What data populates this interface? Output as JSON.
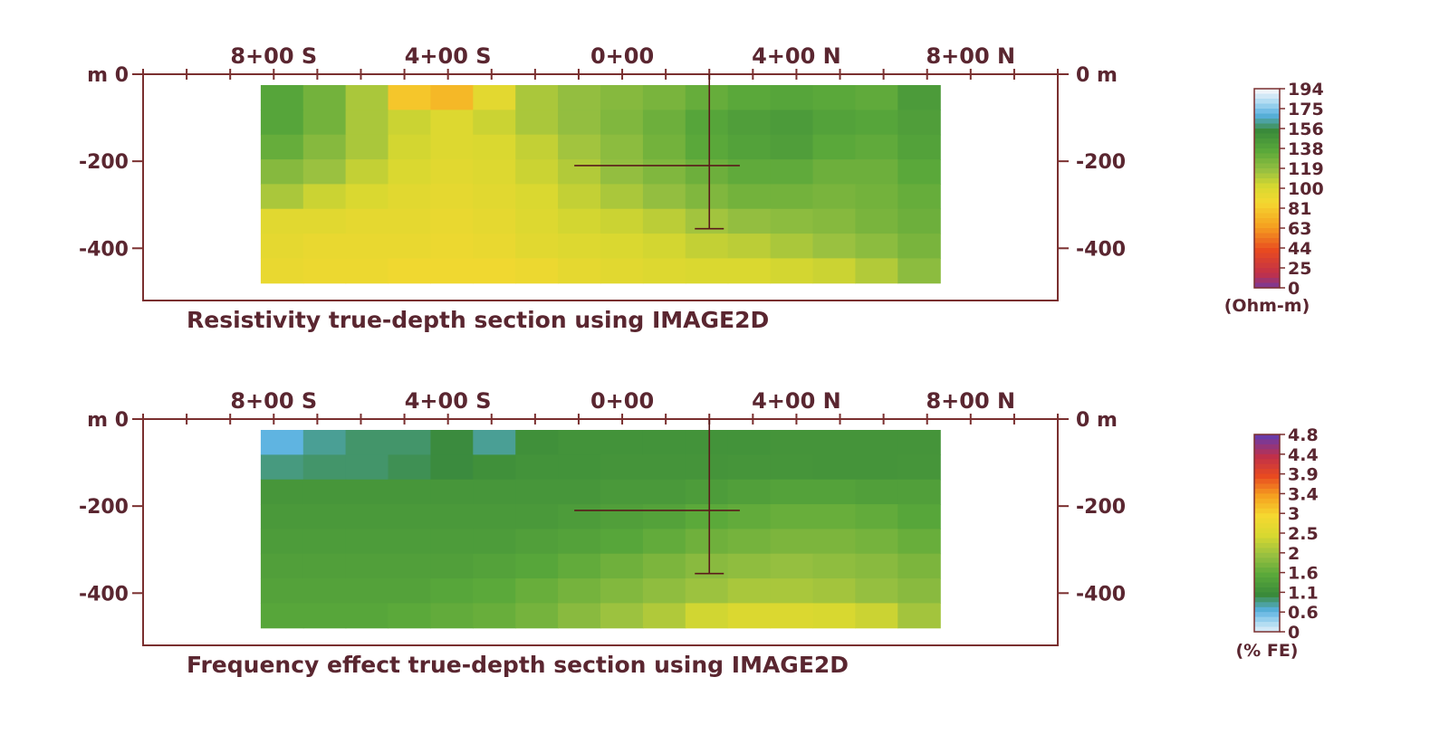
{
  "chart_data": [
    {
      "type": "heatmap",
      "title": "Resistivity true-depth section using IMAGE2D",
      "x_tick_labels": [
        "8+00 S",
        "4+00 S",
        "0+00",
        "4+00 N",
        "8+00 N"
      ],
      "x_tick_values": [
        -800,
        -400,
        0,
        400,
        800
      ],
      "xlim": [
        -1100,
        1000
      ],
      "ylim": [
        -520,
        0
      ],
      "left_y_ticks": [
        {
          "value": 0,
          "label": "m 0"
        },
        {
          "value": -200,
          "label": "-200"
        },
        {
          "value": -400,
          "label": "-400"
        }
      ],
      "right_y_ticks": [
        {
          "value": 0,
          "label": "0 m"
        },
        {
          "value": -200,
          "label": "-200"
        },
        {
          "value": -400,
          "label": "-400"
        }
      ],
      "grid_extent": {
        "x": [
          -830,
          730
        ],
        "y": [
          -480,
          -25
        ]
      },
      "rows": 8,
      "cols": 16,
      "values": [
        [
          138,
          128,
          112,
          78,
          72,
          95,
          112,
          118,
          122,
          126,
          132,
          136,
          138,
          136,
          134,
          144
        ],
        [
          138,
          128,
          112,
          104,
          98,
          104,
          112,
          118,
          124,
          130,
          138,
          142,
          144,
          140,
          138,
          142
        ],
        [
          132,
          122,
          112,
          102,
          98,
          100,
          106,
          114,
          120,
          128,
          136,
          140,
          142,
          136,
          134,
          140
        ],
        [
          122,
          116,
          106,
          100,
          96,
          98,
          104,
          110,
          118,
          124,
          130,
          134,
          134,
          130,
          130,
          136
        ],
        [
          112,
          104,
          100,
          96,
          94,
          96,
          100,
          106,
          112,
          118,
          124,
          128,
          128,
          126,
          128,
          132
        ],
        [
          96,
          96,
          94,
          94,
          92,
          94,
          98,
          102,
          104,
          108,
          114,
          118,
          120,
          122,
          126,
          130
        ],
        [
          94,
          92,
          92,
          92,
          90,
          92,
          96,
          98,
          100,
          102,
          106,
          108,
          112,
          116,
          120,
          126
        ],
        [
          92,
          90,
          90,
          88,
          88,
          88,
          90,
          94,
          96,
          98,
          100,
          100,
          102,
          104,
          110,
          120
        ]
      ],
      "crosshair": {
        "x": 200,
        "y": -210,
        "x_extent": [
          -110,
          270
        ],
        "y_extent": [
          0,
          -355
        ]
      },
      "colorbar": {
        "labels": [
          "194",
          "175",
          "156",
          "138",
          "119",
          "100",
          "81",
          "63",
          "44",
          "25",
          "0"
        ],
        "unit": "(Ohm-m)",
        "min": 0,
        "max": 194
      }
    },
    {
      "type": "heatmap",
      "title": "Frequency effect true-depth section using IMAGE2D",
      "x_tick_labels": [
        "8+00 S",
        "4+00 S",
        "0+00",
        "4+00 N",
        "8+00 N"
      ],
      "x_tick_values": [
        -800,
        -400,
        0,
        400,
        800
      ],
      "xlim": [
        -1100,
        1000
      ],
      "ylim": [
        -520,
        0
      ],
      "left_y_ticks": [
        {
          "value": 0,
          "label": "m 0"
        },
        {
          "value": -200,
          "label": "-200"
        },
        {
          "value": -400,
          "label": "-400"
        }
      ],
      "right_y_ticks": [
        {
          "value": 0,
          "label": "0 m"
        },
        {
          "value": -200,
          "label": "-200"
        },
        {
          "value": -400,
          "label": "-400"
        }
      ],
      "grid_extent": {
        "x": [
          -830,
          730
        ],
        "y": [
          -480,
          -25
        ]
      },
      "rows": 8,
      "cols": 16,
      "values": [
        [
          0.55,
          0.75,
          0.85,
          0.85,
          0.95,
          0.75,
          1.05,
          1.1,
          1.1,
          1.1,
          1.1,
          1.1,
          1.12,
          1.12,
          1.12,
          1.12
        ],
        [
          0.8,
          0.85,
          0.85,
          0.9,
          0.95,
          1.05,
          1.1,
          1.1,
          1.12,
          1.12,
          1.12,
          1.14,
          1.14,
          1.12,
          1.12,
          1.14
        ],
        [
          1.15,
          1.15,
          1.15,
          1.15,
          1.15,
          1.15,
          1.15,
          1.15,
          1.2,
          1.2,
          1.25,
          1.3,
          1.35,
          1.35,
          1.3,
          1.3
        ],
        [
          1.2,
          1.2,
          1.2,
          1.2,
          1.2,
          1.2,
          1.2,
          1.25,
          1.3,
          1.35,
          1.45,
          1.5,
          1.55,
          1.55,
          1.5,
          1.4
        ],
        [
          1.25,
          1.25,
          1.25,
          1.25,
          1.25,
          1.25,
          1.3,
          1.35,
          1.4,
          1.5,
          1.6,
          1.65,
          1.7,
          1.7,
          1.65,
          1.55
        ],
        [
          1.3,
          1.3,
          1.3,
          1.3,
          1.3,
          1.35,
          1.4,
          1.5,
          1.6,
          1.7,
          1.8,
          1.85,
          1.9,
          1.85,
          1.8,
          1.7
        ],
        [
          1.35,
          1.35,
          1.35,
          1.35,
          1.4,
          1.45,
          1.55,
          1.65,
          1.75,
          1.85,
          1.95,
          2.05,
          2.05,
          2.0,
          1.9,
          1.8
        ],
        [
          1.4,
          1.4,
          1.4,
          1.45,
          1.5,
          1.55,
          1.65,
          1.8,
          1.95,
          2.1,
          2.35,
          2.45,
          2.45,
          2.4,
          2.3,
          2.0
        ]
      ],
      "crosshair": {
        "x": 200,
        "y": -210,
        "x_extent": [
          -110,
          270
        ],
        "y_extent": [
          0,
          -355
        ]
      },
      "colorbar": {
        "labels": [
          "4.8",
          "4.4",
          "3.9",
          "3.4",
          "3",
          "2.5",
          "2",
          "1.6",
          "1.1",
          "0.6",
          "0"
        ],
        "unit": "(% FE)",
        "min": 0,
        "max": 4.8
      }
    }
  ],
  "colors": {
    "axis": "#7a2f2f",
    "text": "#5a2630",
    "crosshair": "#5a1a1a"
  },
  "palette_stops": [
    {
      "t": 0.0,
      "color": "#6a3aa8"
    },
    {
      "t": 0.08,
      "color": "#c0304a"
    },
    {
      "t": 0.2,
      "color": "#e84a20"
    },
    {
      "t": 0.32,
      "color": "#f5a020"
    },
    {
      "t": 0.44,
      "color": "#f5d830"
    },
    {
      "t": 0.52,
      "color": "#d8d830"
    },
    {
      "t": 0.6,
      "color": "#98c040"
    },
    {
      "t": 0.7,
      "color": "#5aa83a"
    },
    {
      "t": 0.8,
      "color": "#3a8a3a"
    },
    {
      "t": 0.88,
      "color": "#58b0e0"
    },
    {
      "t": 0.94,
      "color": "#a8d8f0"
    },
    {
      "t": 1.0,
      "color": "#eef4fa"
    }
  ],
  "fe_palette_stops": [
    {
      "t": 0.0,
      "color": "#eef4fa"
    },
    {
      "t": 0.06,
      "color": "#a8d8f0"
    },
    {
      "t": 0.12,
      "color": "#58b0e0"
    },
    {
      "t": 0.2,
      "color": "#3a8a3a"
    },
    {
      "t": 0.3,
      "color": "#5aa83a"
    },
    {
      "t": 0.4,
      "color": "#98c040"
    },
    {
      "t": 0.5,
      "color": "#d8d830"
    },
    {
      "t": 0.6,
      "color": "#f5d830"
    },
    {
      "t": 0.7,
      "color": "#f5a020"
    },
    {
      "t": 0.8,
      "color": "#e84a20"
    },
    {
      "t": 0.9,
      "color": "#c0304a"
    },
    {
      "t": 1.0,
      "color": "#6a3aa8"
    }
  ]
}
